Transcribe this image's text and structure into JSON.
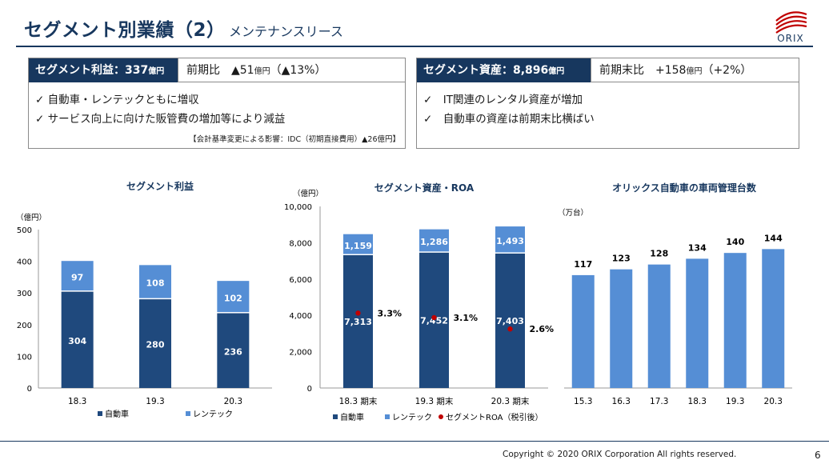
{
  "header": {
    "title": "セグメント別業績（2）",
    "subtitle": "メンテナンスリース",
    "logo_text": "ORIX"
  },
  "left_panel": {
    "label_main": "セグメント利益：337",
    "label_unit": "億円",
    "compare_prefix": "前期比　▲51",
    "compare_unit": "億円",
    "compare_suffix": "（▲13%）",
    "bullets": [
      "✓ 自動車・レンテックともに増収",
      "✓ サービス向上に向けた販管費の増加等により減益"
    ],
    "footnote": "【会計基準変更による影響：IDC（初期直接費用）▲26億円】"
  },
  "right_panel": {
    "label_main": "セグメント資産：8,896",
    "label_unit": "億円",
    "compare_prefix": "前期末比　+158",
    "compare_unit": "億円",
    "compare_suffix": "（+2%）",
    "bullets": [
      "✓　IT関連のレンタル資産が増加",
      "✓　自動車の資産は前期末比横ばい"
    ]
  },
  "colors": {
    "navy": "#1f497d",
    "light_blue": "#558ed5",
    "red_dot": "#c00000",
    "dark_header": "#17375e"
  },
  "chart_data": [
    {
      "type": "bar",
      "title": "セグメント利益",
      "unit_label": "（億円）",
      "categories": [
        "18.3",
        "19.3",
        "20.3"
      ],
      "series": [
        {
          "name": "自動車",
          "values": [
            304,
            280,
            236
          ]
        },
        {
          "name": "レンテック",
          "values": [
            97,
            108,
            102
          ]
        }
      ],
      "ylim": [
        0,
        500
      ],
      "yticks": [
        "0",
        "100",
        "200",
        "300",
        "400",
        "500"
      ],
      "legend": "bottom"
    },
    {
      "type": "bar",
      "title": "セグメント資産・ROA",
      "unit_label": "（億円）",
      "categories": [
        "18.3 期末",
        "19.3 期末",
        "20.3 期末"
      ],
      "series": [
        {
          "name": "自動車",
          "values": [
            7313,
            7452,
            7403
          ]
        },
        {
          "name": "レンテック",
          "values": [
            1159,
            1286,
            1493
          ]
        },
        {
          "name": "セグメントROA（税引後）",
          "values": [
            3.3,
            3.1,
            2.6
          ]
        }
      ],
      "value_labels": {
        "auto": [
          "7,313",
          "7,452",
          "7,403"
        ],
        "rentec": [
          "1,159",
          "1,286",
          "1,493"
        ],
        "roa": [
          "3.3%",
          "3.1%",
          "2.6%"
        ]
      },
      "ylim": [
        0,
        10000
      ],
      "yticks": [
        "0",
        "2,000",
        "4,000",
        "6,000",
        "8,000",
        "10,000"
      ],
      "legend": "bottom"
    },
    {
      "type": "bar",
      "title": "オリックス自動車の車両管理台数",
      "unit_label": "（万台）",
      "categories": [
        "15.3",
        "16.3",
        "17.3",
        "18.3",
        "19.3",
        "20.3"
      ],
      "values": [
        117,
        123,
        128,
        134,
        140,
        144
      ],
      "ylim": [
        0,
        170
      ]
    }
  ],
  "footer": {
    "copyright": "Copyright © 2020 ORIX Corporation  All rights reserved.",
    "page_number": "6"
  }
}
